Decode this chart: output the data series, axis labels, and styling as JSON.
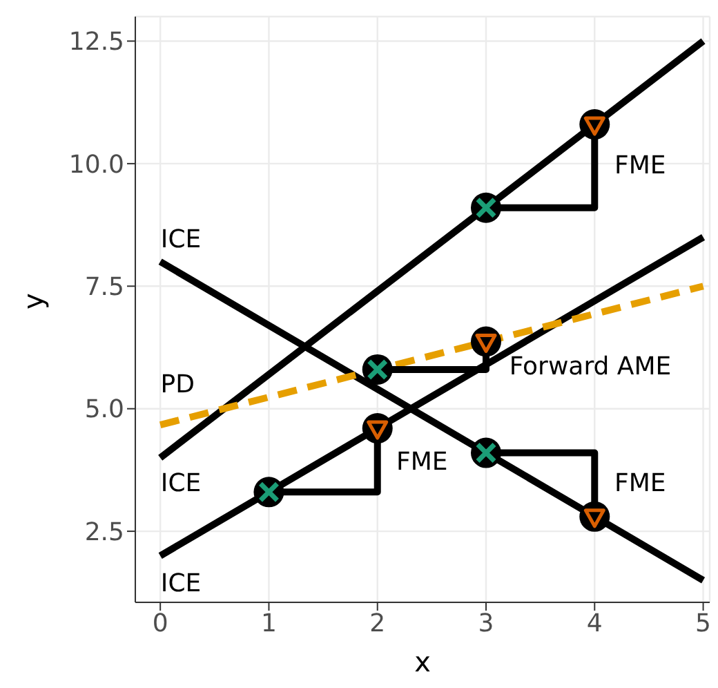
{
  "chart_data": {
    "type": "line",
    "xlabel": "x",
    "ylabel": "y",
    "xlim": [
      -0.23,
      5.06
    ],
    "ylim": [
      1.05,
      13.0
    ],
    "xticks": [
      0,
      1,
      2,
      3,
      4,
      5
    ],
    "yticks": [
      {
        "value": 2.5,
        "label": "2.5"
      },
      {
        "value": 5,
        "label": "5.0"
      },
      {
        "value": 7.5,
        "label": "7.5"
      },
      {
        "value": 10,
        "label": "10.0"
      },
      {
        "value": 12.5,
        "label": "12.5"
      }
    ],
    "grid": true,
    "series": [
      {
        "x": [
          0,
          5
        ],
        "values": [
          4,
          12.5
        ],
        "color": "#000000",
        "line_style": "solid"
      },
      {
        "x": [
          0,
          5
        ],
        "values": [
          2,
          8.5
        ],
        "color": "#000000",
        "line_style": "solid"
      },
      {
        "x": [
          0,
          5
        ],
        "values": [
          8,
          1.5
        ],
        "color": "#000000",
        "line_style": "solid"
      },
      {
        "x": [
          0,
          5
        ],
        "values": [
          4.67,
          7.5
        ],
        "color": "#e69f00",
        "line_style": "dashed"
      },
      {
        "x": [
          3,
          4,
          4
        ],
        "values": [
          9.1,
          9.1,
          10.8
        ],
        "color": "#000000",
        "line_style": "solid"
      },
      {
        "x": [
          1,
          2,
          2
        ],
        "values": [
          3.3,
          3.3,
          4.6
        ],
        "color": "#000000",
        "line_style": "solid"
      },
      {
        "x": [
          3,
          4,
          4
        ],
        "values": [
          4.1,
          4.1,
          2.8
        ],
        "color": "#000000",
        "line_style": "solid"
      },
      {
        "x": [
          2,
          3,
          3
        ],
        "values": [
          5.8,
          5.8,
          6.37
        ],
        "color": "#000000",
        "line_style": "solid"
      },
      {
        "type": "scatter",
        "x": [
          3,
          1,
          3,
          2
        ],
        "values": [
          9.1,
          3.3,
          4.1,
          5.8
        ],
        "color": "#1b9e77",
        "marker": "cross"
      },
      {
        "type": "scatter",
        "x": [
          4,
          2,
          4,
          3
        ],
        "values": [
          10.8,
          4.6,
          2.8,
          6.37
        ],
        "color": "#d95f02",
        "marker": "triangle"
      }
    ],
    "annotations": [
      "ICE",
      "PD",
      "ICE",
      "ICE",
      "FME",
      "FME",
      "FME",
      "Forward AME"
    ]
  }
}
